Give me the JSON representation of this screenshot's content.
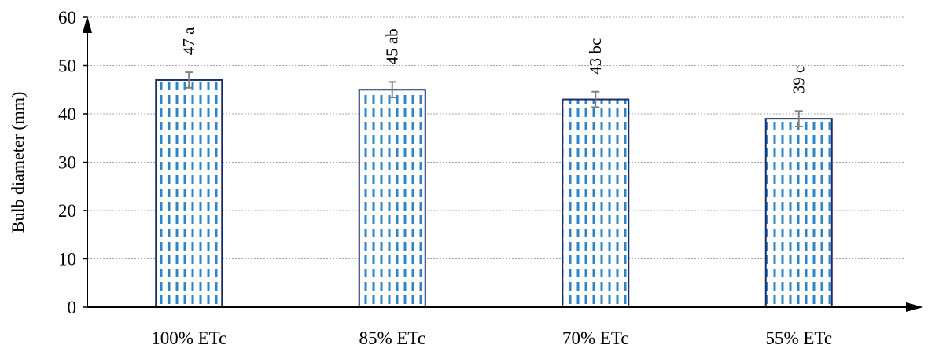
{
  "chart_data": {
    "type": "bar",
    "title": "",
    "xlabel": "",
    "ylabel": "Bulb diameter (mm)",
    "ylim": [
      0,
      60
    ],
    "yticks": [
      0,
      10,
      20,
      30,
      40,
      50,
      60
    ],
    "grid": true,
    "categories": [
      "100% ETc",
      "85% ETc",
      "70% ETc",
      "55% ETc"
    ],
    "values": [
      47,
      45,
      43,
      39
    ],
    "error": [
      1.6,
      1.6,
      1.6,
      1.6
    ],
    "data_labels": [
      "47 a",
      "45 ab",
      "43 bc",
      "39 c"
    ],
    "colors": {
      "bar_border": "#1a2d6b",
      "bar_pattern": "#2e86c8",
      "error_bar": "#808080",
      "grid": "#a6a6a6",
      "axis": "#000000"
    }
  }
}
